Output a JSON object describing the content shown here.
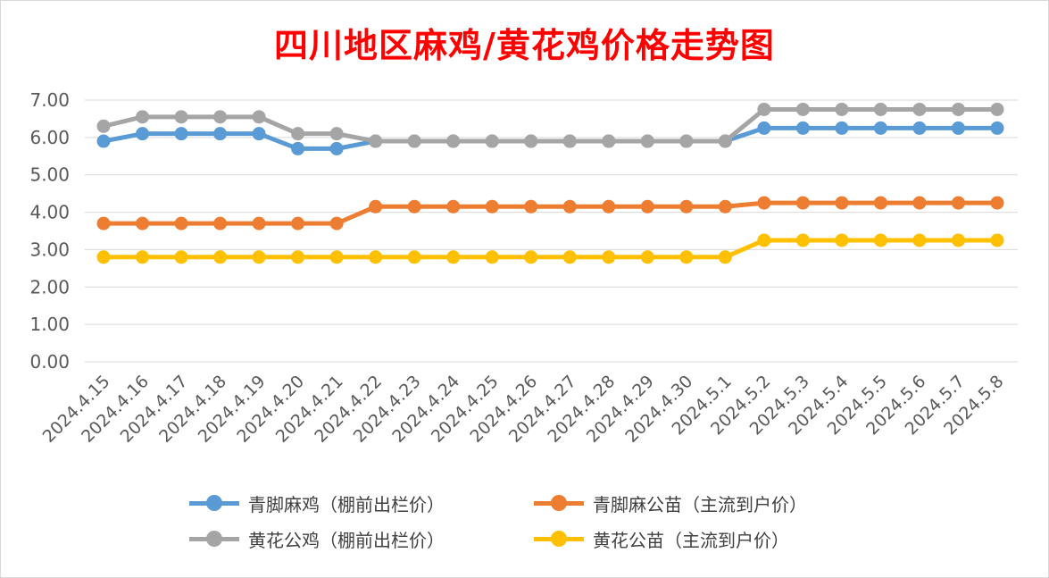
{
  "chart_data": {
    "type": "line",
    "title": "四川地区麻鸡/黄花鸡价格走势图",
    "title_color": "#ff0000",
    "xlabel": "",
    "ylabel": "",
    "ylim": [
      0,
      7
    ],
    "yticks": [
      "0.00",
      "1.00",
      "2.00",
      "3.00",
      "4.00",
      "5.00",
      "6.00",
      "7.00"
    ],
    "grid": true,
    "legend_position": "bottom",
    "categories": [
      "2024.4.15",
      "2024.4.16",
      "2024.4.17",
      "2024.4.18",
      "2024.4.19",
      "2024.4.20",
      "2024.4.21",
      "2024.4.22",
      "2024.4.23",
      "2024.4.24",
      "2024.4.25",
      "2024.4.26",
      "2024.4.27",
      "2024.4.28",
      "2024.4.29",
      "2024.4.30",
      "2024.5.1",
      "2024.5.2",
      "2024.5.3",
      "2024.5.4",
      "2024.5.5",
      "2024.5.6",
      "2024.5.7",
      "2024.5.8"
    ],
    "series": [
      {
        "name": "青脚麻鸡（棚前出栏价）",
        "color": "#5b9bd5",
        "values": [
          5.9,
          6.1,
          6.1,
          6.1,
          6.1,
          5.7,
          5.7,
          5.9,
          5.9,
          5.9,
          5.9,
          5.9,
          5.9,
          5.9,
          5.9,
          5.9,
          5.9,
          6.25,
          6.25,
          6.25,
          6.25,
          6.25,
          6.25,
          6.25
        ]
      },
      {
        "name": "青脚麻公苗（主流到户价）",
        "color": "#ed7d31",
        "values": [
          3.7,
          3.7,
          3.7,
          3.7,
          3.7,
          3.7,
          3.7,
          4.15,
          4.15,
          4.15,
          4.15,
          4.15,
          4.15,
          4.15,
          4.15,
          4.15,
          4.15,
          4.25,
          4.25,
          4.25,
          4.25,
          4.25,
          4.25,
          4.25
        ]
      },
      {
        "name": "黄花公鸡（棚前出栏价）",
        "color": "#a5a5a5",
        "values": [
          6.3,
          6.55,
          6.55,
          6.55,
          6.55,
          6.1,
          6.1,
          5.9,
          5.9,
          5.9,
          5.9,
          5.9,
          5.9,
          5.9,
          5.9,
          5.9,
          5.9,
          6.75,
          6.75,
          6.75,
          6.75,
          6.75,
          6.75,
          6.75
        ]
      },
      {
        "name": "黄花公苗（主流到户价）",
        "color": "#ffc000",
        "values": [
          2.8,
          2.8,
          2.8,
          2.8,
          2.8,
          2.8,
          2.8,
          2.8,
          2.8,
          2.8,
          2.8,
          2.8,
          2.8,
          2.8,
          2.8,
          2.8,
          2.8,
          3.25,
          3.25,
          3.25,
          3.25,
          3.25,
          3.25,
          3.25
        ]
      }
    ]
  }
}
